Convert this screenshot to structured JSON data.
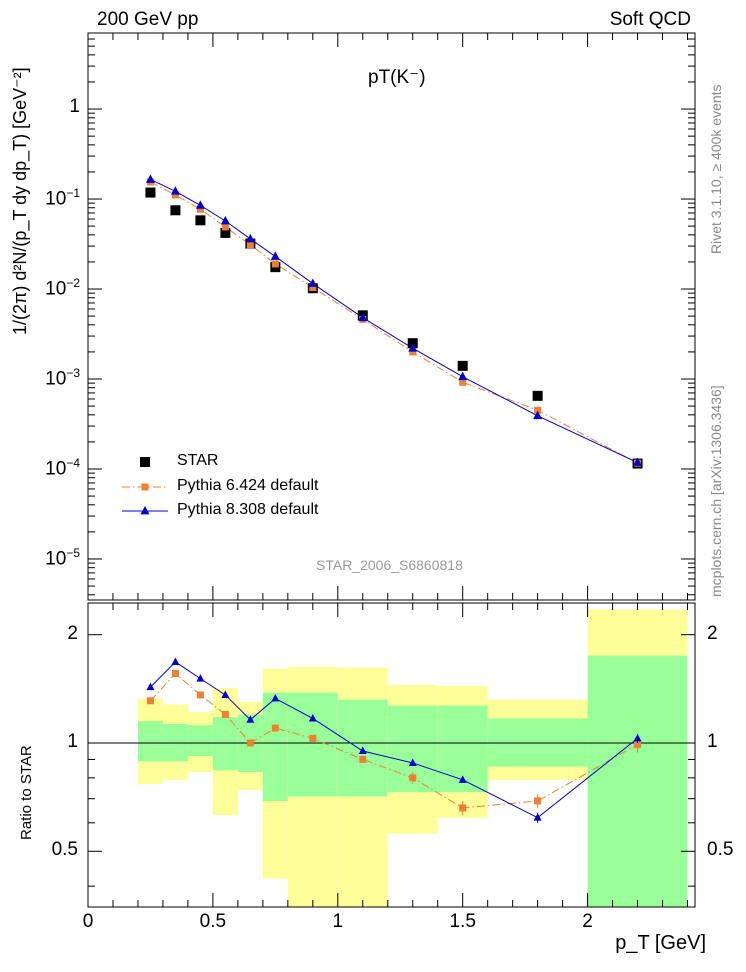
{
  "header": {
    "left": "200 GeV pp",
    "right": "Soft QCD"
  },
  "side_labels": {
    "rivet": "Rivet 3.1.10, ≥ 400k events",
    "mcplots": "mcplots.cern.ch [arXiv:1306.3436]"
  },
  "watermark": "STAR_2006_S6860818",
  "colors": {
    "star": "#000000",
    "pythia6": "#f07f33",
    "pythia8": "#0000cc",
    "band_inner": "#99ff99",
    "band_outer": "#ffff99"
  },
  "chart_data": [
    {
      "type": "scatter",
      "title": "pT(K⁻)",
      "xlabel": "p_T [GeV]",
      "ylabel": "1/(2π) d²N/(p_T dy dp_T) [GeV⁻²]",
      "yscale": "log",
      "xlim": [
        0,
        2.43
      ],
      "ylim": [
        3.5e-06,
        7
      ],
      "y_ticks": [
        {
          "value": 1e-05,
          "base": "10",
          "exp": "−5"
        },
        {
          "value": 0.0001,
          "base": "10",
          "exp": "−4"
        },
        {
          "value": 0.001,
          "base": "10",
          "exp": "−3"
        },
        {
          "value": 0.01,
          "base": "10",
          "exp": "−2"
        },
        {
          "value": 0.1,
          "base": "10",
          "exp": "−1"
        },
        {
          "value": 1,
          "base": "1",
          "exp": ""
        }
      ],
      "legend": [
        "STAR",
        "Pythia 6.424 default",
        "Pythia 8.308 default"
      ],
      "legend_position": "bottom-left",
      "series": [
        {
          "name": "STAR",
          "marker": "square",
          "x": [
            0.25,
            0.35,
            0.45,
            0.55,
            0.65,
            0.75,
            0.9,
            1.1,
            1.3,
            1.5,
            1.8,
            2.2
          ],
          "y": [
            0.118,
            0.075,
            0.058,
            0.042,
            0.032,
            0.0175,
            0.0102,
            0.0051,
            0.0025,
            0.0014,
            0.00065,
            0.000115
          ]
        },
        {
          "name": "Pythia 6.424 default",
          "marker": "square",
          "line": "dash-dot",
          "x": [
            0.25,
            0.35,
            0.45,
            0.55,
            0.65,
            0.75,
            0.9,
            1.1,
            1.3,
            1.5,
            1.8,
            2.2
          ],
          "y": [
            0.155,
            0.111,
            0.077,
            0.049,
            0.031,
            0.019,
            0.0104,
            0.0046,
            0.002,
            0.00092,
            0.00045,
            0.000116
          ]
        },
        {
          "name": "Pythia 8.308 default",
          "marker": "triangle",
          "line": "solid",
          "x": [
            0.25,
            0.35,
            0.45,
            0.55,
            0.65,
            0.75,
            0.9,
            1.1,
            1.3,
            1.5,
            1.8,
            2.2
          ],
          "y": [
            0.165,
            0.122,
            0.085,
            0.057,
            0.036,
            0.023,
            0.0115,
            0.0048,
            0.0022,
            0.00106,
            0.00039,
            0.000118
          ]
        }
      ]
    },
    {
      "type": "line",
      "xlabel": "p_T [GeV]",
      "ylabel": "Ratio to STAR",
      "yscale": "log",
      "xlim": [
        0,
        2.43
      ],
      "ylim": [
        0.35,
        2.45
      ],
      "x_ticks": [
        "0",
        "0.5",
        "1",
        "1.5",
        "2"
      ],
      "x_tick_values": [
        0,
        0.5,
        1,
        1.5,
        2
      ],
      "y_ticks": [
        "0.5",
        "1",
        "2"
      ],
      "y_tick_values": [
        0.5,
        1,
        2
      ],
      "uncertainty_bands": [
        {
          "x_range": [
            0.2,
            0.3
          ],
          "inner": [
            0.89,
            1.15
          ],
          "outer": [
            0.77,
            1.33
          ]
        },
        {
          "x_range": [
            0.3,
            0.4
          ],
          "inner": [
            0.89,
            1.13
          ],
          "outer": [
            0.79,
            1.28
          ]
        },
        {
          "x_range": [
            0.4,
            0.5
          ],
          "inner": [
            0.92,
            1.12
          ],
          "outer": [
            0.83,
            1.22
          ]
        },
        {
          "x_range": [
            0.5,
            0.6
          ],
          "inner": [
            0.84,
            1.18
          ],
          "outer": [
            0.63,
            1.42
          ]
        },
        {
          "x_range": [
            0.6,
            0.7
          ],
          "inner": [
            0.83,
            1.2
          ],
          "outer": [
            0.74,
            1.3
          ]
        },
        {
          "x_range": [
            0.7,
            0.8
          ],
          "inner": [
            0.69,
            1.38
          ],
          "outer": [
            0.42,
            1.61
          ]
        },
        {
          "x_range": [
            0.8,
            1.0
          ],
          "inner": [
            0.71,
            1.38
          ],
          "outer": [
            0.34,
            1.63
          ]
        },
        {
          "x_range": [
            1.0,
            1.2
          ],
          "inner": [
            0.71,
            1.32
          ],
          "outer": [
            0.34,
            1.62
          ]
        },
        {
          "x_range": [
            1.2,
            1.4
          ],
          "inner": [
            0.73,
            1.27
          ],
          "outer": [
            0.56,
            1.45
          ]
        },
        {
          "x_range": [
            1.4,
            1.6
          ],
          "inner": [
            0.73,
            1.27
          ],
          "outer": [
            0.62,
            1.44
          ]
        },
        {
          "x_range": [
            1.6,
            2.0
          ],
          "inner": [
            0.86,
            1.17
          ],
          "outer": [
            0.79,
            1.32
          ]
        },
        {
          "x_range": [
            2.0,
            2.4
          ],
          "inner": [
            0.34,
            1.75
          ],
          "outer": [
            0.34,
            2.35
          ]
        }
      ],
      "series": [
        {
          "name": "Pythia 6.424 default",
          "x": [
            0.25,
            0.35,
            0.45,
            0.55,
            0.65,
            0.75,
            0.9,
            1.1,
            1.3,
            1.5,
            1.8,
            2.2
          ],
          "y": [
            1.31,
            1.56,
            1.36,
            1.2,
            1.0,
            1.1,
            1.03,
            0.9,
            0.8,
            0.66,
            0.69,
            0.99
          ],
          "err": [
            0.02,
            0.02,
            0.02,
            0.02,
            0.02,
            0.02,
            0.02,
            0.02,
            0.03,
            0.03,
            0.03,
            0.05
          ]
        },
        {
          "name": "Pythia 8.308 default",
          "x": [
            0.25,
            0.35,
            0.45,
            0.55,
            0.65,
            0.75,
            0.9,
            1.1,
            1.3,
            1.5,
            1.8,
            2.2
          ],
          "y": [
            1.43,
            1.68,
            1.51,
            1.36,
            1.16,
            1.33,
            1.17,
            0.95,
            0.88,
            0.79,
            0.62,
            1.03
          ],
          "err": [
            0.01,
            0.01,
            0.01,
            0.01,
            0.01,
            0.01,
            0.01,
            0.01,
            0.01,
            0.01,
            0.02,
            0.03
          ]
        }
      ]
    }
  ]
}
